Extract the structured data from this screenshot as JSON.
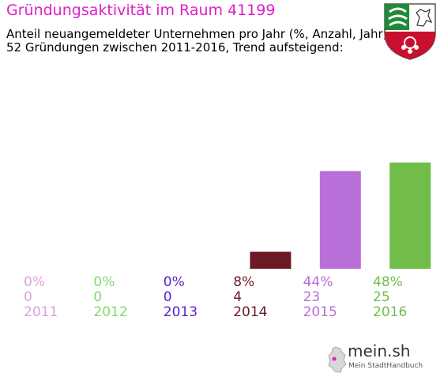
{
  "header": {
    "title": "Gründungsaktivität im Raum 41199",
    "subtitle_line1": "Anteil neuangemeldeter Unternehmen pro Jahr (%, Anzahl, Jahr)",
    "subtitle_line2": "52 Gründungen zwischen 2011-2016, Trend aufsteigend:"
  },
  "chart_data": {
    "type": "bar",
    "title": "Gründungsaktivität im Raum 41199",
    "categories": [
      "2011",
      "2012",
      "2013",
      "2014",
      "2015",
      "2016"
    ],
    "values": [
      0,
      0,
      0,
      4,
      23,
      25
    ],
    "percent_labels": [
      "0%",
      "0%",
      "0%",
      "8%",
      "44%",
      "48%"
    ],
    "count_labels": [
      "0",
      "0",
      "0",
      "4",
      "23",
      "25"
    ],
    "bar_colors": [
      "#dda0dd",
      "#7ddc6a",
      "#5a1ed2",
      "#6b1a24",
      "#b86fd8",
      "#72bd4a"
    ],
    "label_colors": [
      "#dda0dd",
      "#7ddc6a",
      "#5a1ed2",
      "#6b1a24",
      "#b86fd8",
      "#72bd4a"
    ],
    "xlabel": "",
    "ylabel": "",
    "ylim": [
      0,
      48
    ],
    "grid": false,
    "legend": "none"
  },
  "footer": {
    "logo_name": "mein.sh",
    "logo_tagline": "Mein StadtHandbuch"
  },
  "icons": {
    "crest": "nrw-coat-of-arms-icon",
    "map": "germany-map-icon"
  }
}
